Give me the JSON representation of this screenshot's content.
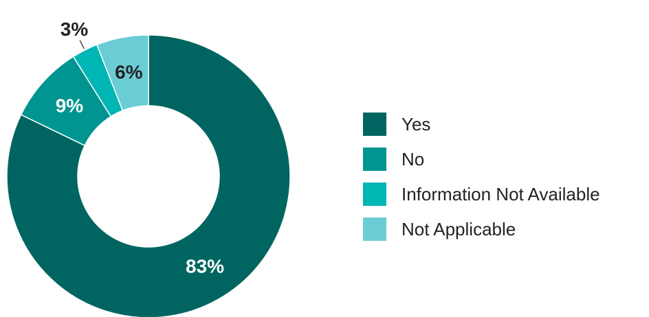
{
  "chart_data": {
    "type": "pie",
    "variant": "donut",
    "title": "",
    "categories": [
      "Yes",
      "No",
      "Information Not Available",
      "Not Applicable"
    ],
    "values": [
      83,
      9,
      3,
      6
    ],
    "value_labels": [
      "83%",
      "9%",
      "3%",
      "6%"
    ],
    "colors": [
      "#006560",
      "#009590",
      "#00B6B5",
      "#6ACDD6"
    ],
    "label_colors": [
      "#ffffff",
      "#ffffff",
      "#222222",
      "#222222"
    ],
    "legend": {
      "position": "right",
      "entries": [
        "Yes",
        "No",
        "Information Not Available",
        "Not Applicable"
      ]
    }
  }
}
